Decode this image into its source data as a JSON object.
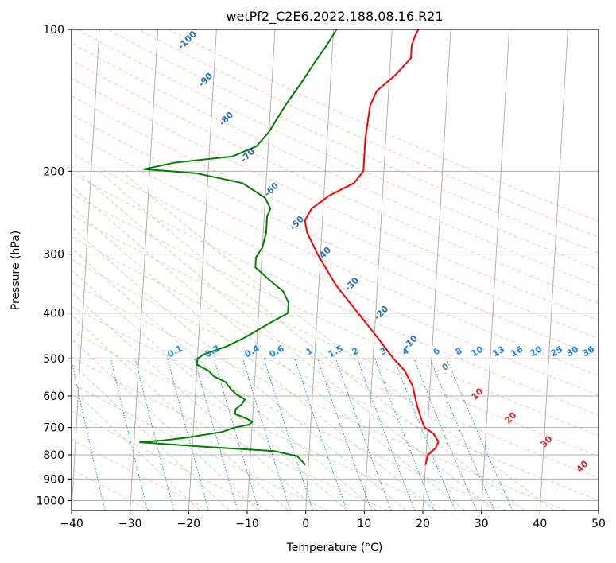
{
  "chart_data": {
    "type": "line",
    "title": "wetPf2_C2E6.2022.188.08.16.R21",
    "xlabel": "Temperature (°C)",
    "ylabel": "Pressure (hPa)",
    "xlim": [
      -40,
      50
    ],
    "ylim": [
      1050,
      100
    ],
    "y_scale": "log",
    "grid": true,
    "x_ticks": [
      -40,
      -30,
      -20,
      -10,
      0,
      10,
      20,
      30,
      40,
      50
    ],
    "y_ticks": [
      100,
      200,
      300,
      400,
      500,
      600,
      700,
      800,
      900,
      1000
    ],
    "series": [
      {
        "color": "#ff0000",
        "points": [
          [
            20,
            840
          ],
          [
            20.3,
            800
          ],
          [
            21.5,
            775
          ],
          [
            22,
            750
          ],
          [
            21,
            720
          ],
          [
            19.5,
            700
          ],
          [
            18.8,
            670
          ],
          [
            18,
            630
          ],
          [
            17.5,
            600
          ],
          [
            17,
            570
          ],
          [
            15.5,
            530
          ],
          [
            13.5,
            500
          ],
          [
            10.5,
            450
          ],
          [
            7,
            400
          ],
          [
            3,
            350
          ],
          [
            -0.5,
            300
          ],
          [
            -2.5,
            270
          ],
          [
            -3,
            255
          ],
          [
            -2,
            240
          ],
          [
            1,
            225
          ],
          [
            5,
            212
          ],
          [
            6.5,
            200
          ],
          [
            6.5,
            185
          ],
          [
            6.5,
            170
          ],
          [
            6.8,
            155
          ],
          [
            7,
            145
          ],
          [
            8,
            135
          ],
          [
            11,
            125
          ],
          [
            13.5,
            115
          ],
          [
            13.5,
            108
          ],
          [
            14,
            103
          ],
          [
            14.5,
            100
          ]
        ]
      },
      {
        "color": "#008000",
        "points": [
          [
            -0.5,
            840
          ],
          [
            -2,
            805
          ],
          [
            -6,
            785
          ],
          [
            -17,
            770
          ],
          [
            -29,
            752
          ],
          [
            -25,
            745
          ],
          [
            -21,
            735
          ],
          [
            -15,
            715
          ],
          [
            -13,
            700
          ],
          [
            -10.5,
            690
          ],
          [
            -10,
            680
          ],
          [
            -11,
            670
          ],
          [
            -13,
            655
          ],
          [
            -13,
            640
          ],
          [
            -12,
            625
          ],
          [
            -11.5,
            610
          ],
          [
            -13,
            595
          ],
          [
            -14,
            580
          ],
          [
            -15,
            560
          ],
          [
            -17,
            545
          ],
          [
            -18,
            530
          ],
          [
            -20,
            515
          ],
          [
            -20,
            500
          ],
          [
            -19,
            490
          ],
          [
            -15,
            470
          ],
          [
            -12,
            450
          ],
          [
            -8,
            420
          ],
          [
            -5,
            400
          ],
          [
            -5,
            380
          ],
          [
            -6,
            360
          ],
          [
            -8.5,
            340
          ],
          [
            -11,
            320
          ],
          [
            -11,
            305
          ],
          [
            -10,
            290
          ],
          [
            -9.5,
            270
          ],
          [
            -9.5,
            250
          ],
          [
            -9,
            240
          ],
          [
            -10,
            228
          ],
          [
            -14,
            212
          ],
          [
            -22,
            202
          ],
          [
            -31,
            198
          ],
          [
            -26,
            192
          ],
          [
            -16,
            186
          ],
          [
            -12,
            177
          ],
          [
            -10,
            165
          ],
          [
            -7.5,
            145
          ],
          [
            -5,
            130
          ],
          [
            -3,
            118
          ],
          [
            -1,
            108
          ],
          [
            0.5,
            100
          ]
        ]
      }
    ],
    "isotherm_labels": [
      "-100",
      "-90",
      "-80",
      "-70",
      "-60",
      "-50",
      "-40",
      "-30",
      "-20",
      "-10"
    ],
    "mixing_ratio_labels": [
      "0.1",
      "0.2",
      "0.4",
      "0.6",
      "1",
      "1.5",
      "2",
      "3",
      "4",
      "6",
      "8",
      "10",
      "13",
      "16",
      "20",
      "25",
      "30",
      "36"
    ],
    "moist_adiabat_labels": [
      "0",
      "10",
      "20",
      "30",
      "40"
    ]
  }
}
